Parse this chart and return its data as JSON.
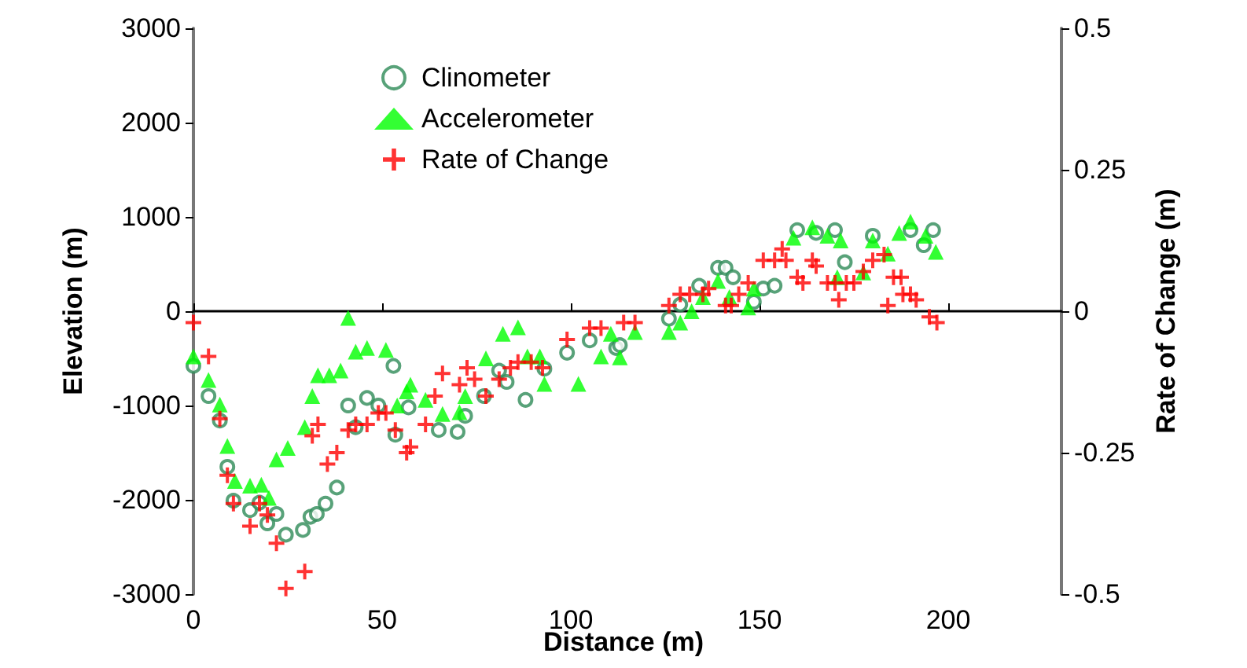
{
  "chart_data": {
    "type": "scatter",
    "xlabel": "Distance (m)",
    "ylabel": "Elevation (m)",
    "y2label": "Rate of Change (m)",
    "xlim": [
      0,
      230
    ],
    "xticks": [
      0,
      50,
      100,
      150,
      200
    ],
    "ylim": [
      -3000,
      3000
    ],
    "yticks": [
      -3000,
      -2000,
      -1000,
      0,
      1000,
      2000,
      3000
    ],
    "y2lim": [
      -0.5,
      0.5
    ],
    "y2ticks": [
      -0.5,
      -0.25,
      0,
      0.25,
      0.5
    ],
    "legend": "top left",
    "series": [
      {
        "name": "Clinometer",
        "color": "#2e8b57",
        "marker": "circle",
        "x": [
          0,
          4,
          7,
          9,
          10.6,
          15,
          17.5,
          19.6,
          22,
          24.5,
          29,
          31,
          32.7,
          35,
          38,
          41,
          43,
          46,
          49,
          53,
          53.5,
          57,
          65,
          70,
          72,
          77,
          81,
          83,
          88,
          93,
          99,
          105,
          112,
          113,
          126,
          129,
          134,
          139,
          141,
          143,
          148.5,
          151,
          154,
          160,
          165,
          170,
          172.6,
          180,
          190,
          193.5,
          196
        ],
        "values": [
          -580,
          -900,
          -1160,
          -1650,
          -2010,
          -2110,
          -2030,
          -2250,
          -2150,
          -2370,
          -2320,
          -2180,
          -2150,
          -2040,
          -1870,
          -1000,
          -1230,
          -920,
          -1000,
          -580,
          -1310,
          -1020,
          -1260,
          -1280,
          -1110,
          -900,
          -630,
          -750,
          -940,
          -610,
          -440,
          -310,
          -390,
          -360,
          -80,
          70,
          270,
          460,
          460,
          360,
          100,
          240,
          270,
          860,
          830,
          860,
          520,
          800,
          860,
          700,
          860
        ]
      },
      {
        "name": "Accelerometer",
        "color": "#00ff00",
        "marker": "triangle",
        "x": [
          0,
          4,
          7,
          9,
          11,
          15,
          18,
          20,
          22,
          25,
          29.5,
          31.5,
          33,
          36,
          39,
          41,
          43,
          46,
          51,
          54,
          56.5,
          57.5,
          61.5,
          66,
          70.5,
          72,
          77.5,
          82,
          86,
          88.5,
          91.8,
          93,
          102,
          108,
          110.6,
          113,
          117,
          126,
          129,
          132,
          135,
          139,
          142,
          147,
          148.5,
          159,
          164,
          168,
          170.6,
          171.5,
          177.5,
          180,
          184,
          187,
          190,
          194,
          196.7
        ],
        "values": [
          -480,
          -730,
          -990,
          -1430,
          -1800,
          -1850,
          -1840,
          -1980,
          -1570,
          -1450,
          -1230,
          -900,
          -680,
          -680,
          -630,
          -70,
          -430,
          -390,
          -410,
          -1000,
          -850,
          -780,
          -940,
          -1090,
          -1070,
          -900,
          -500,
          -240,
          -170,
          -480,
          -480,
          -770,
          -770,
          -480,
          -240,
          -490,
          -220,
          -220,
          -120,
          0,
          150,
          320,
          150,
          40,
          240,
          780,
          890,
          800,
          360,
          750,
          410,
          750,
          610,
          830,
          950,
          800,
          630
        ]
      },
      {
        "name": "Rate of Change",
        "color": "#ff0000",
        "marker": "cross",
        "axis": "y2",
        "x": [
          0,
          4,
          7,
          9,
          10.6,
          15,
          17.5,
          19.6,
          22,
          24.5,
          29.5,
          31.5,
          33,
          35.5,
          38,
          41,
          43,
          46,
          49,
          51,
          53.5,
          56.5,
          57.5,
          61.5,
          64,
          66,
          70.5,
          72.5,
          74.5,
          77.5,
          81,
          84,
          86,
          89.5,
          92.5,
          99,
          105,
          108,
          114,
          117,
          126,
          129,
          131.5,
          135,
          136.5,
          141,
          142.5,
          144.5,
          147,
          151,
          154,
          156,
          157,
          160,
          161.5,
          164,
          165,
          168,
          170,
          171,
          173,
          175,
          177.5,
          180,
          183,
          184,
          185.5,
          187.5,
          188,
          190,
          191.5,
          195,
          197
        ],
        "values": [
          -0.02,
          -0.08,
          -0.19,
          -0.29,
          -0.34,
          -0.38,
          -0.34,
          -0.36,
          -0.41,
          -0.49,
          -0.46,
          -0.22,
          -0.2,
          -0.27,
          -0.25,
          -0.21,
          -0.2,
          -0.2,
          -0.18,
          -0.18,
          -0.21,
          -0.25,
          -0.24,
          -0.2,
          -0.15,
          -0.11,
          -0.13,
          -0.1,
          -0.12,
          -0.15,
          -0.12,
          -0.1,
          -0.09,
          -0.09,
          -0.1,
          -0.05,
          -0.03,
          -0.03,
          -0.02,
          -0.02,
          0.01,
          0.03,
          0.03,
          0.03,
          0.04,
          0.01,
          0.01,
          0.03,
          0.05,
          0.09,
          0.09,
          0.11,
          0.09,
          0.06,
          0.05,
          0.09,
          0.08,
          0.05,
          0.05,
          0.02,
          0.05,
          0.05,
          0.07,
          0.09,
          0.1,
          0.01,
          0.06,
          0.06,
          0.03,
          0.03,
          0.02,
          -0.01,
          -0.02
        ]
      }
    ]
  }
}
